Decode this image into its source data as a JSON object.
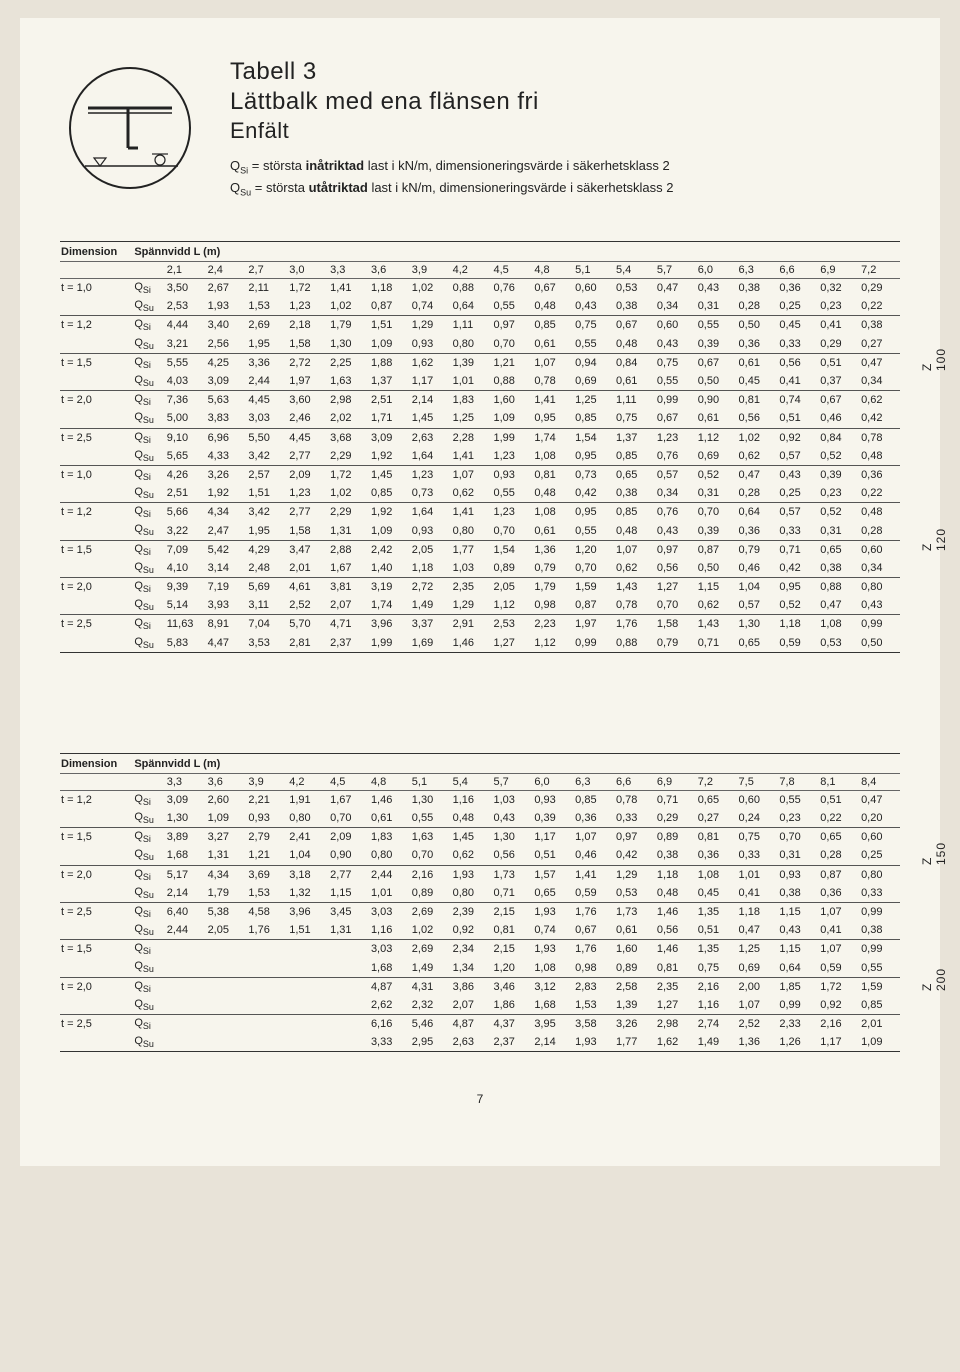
{
  "page_number": "7",
  "header": {
    "table_label": "Tabell 3",
    "title": "Lättbalk med ena flänsen fri",
    "subtitle": "Enfält",
    "def_qsi_pre": "Q",
    "def_qsi_sub": "Si",
    "def_qsi_text": " = största ",
    "def_qsi_bold": "inåtriktad",
    "def_qsi_after": " last i kN/m, dimensioneringsvärde i säkerhetsklass 2",
    "def_qsu_pre": "Q",
    "def_qsu_sub": "Su",
    "def_qsu_text": " = största ",
    "def_qsu_bold": "utåtriktad",
    "def_qsu_after": " last i kN/m, dimensioneringsvärde i säkerhetsklass 2"
  },
  "table1": {
    "dim_label": "Dimension",
    "span_label": "Spännvidd L (m)",
    "span_cols": [
      "2,1",
      "2,4",
      "2,7",
      "3,0",
      "3,3",
      "3,6",
      "3,9",
      "4,2",
      "4,5",
      "4,8",
      "5,1",
      "5,4",
      "5,7",
      "6,0",
      "6,3",
      "6,6",
      "6,9",
      "7,2"
    ],
    "groups": [
      {
        "z": "Z 100",
        "rows": [
          {
            "dim": "t = 1,0",
            "q": "QSi",
            "v": [
              "3,50",
              "2,67",
              "2,11",
              "1,72",
              "1,41",
              "1,18",
              "1,02",
              "0,88",
              "0,76",
              "0,67",
              "0,60",
              "0,53",
              "0,47",
              "0,43",
              "0,38",
              "0,36",
              "0,32",
              "0,29"
            ]
          },
          {
            "dim": "",
            "q": "QSu",
            "v": [
              "2,53",
              "1,93",
              "1,53",
              "1,23",
              "1,02",
              "0,87",
              "0,74",
              "0,64",
              "0,55",
              "0,48",
              "0,43",
              "0,38",
              "0,34",
              "0,31",
              "0,28",
              "0,25",
              "0,23",
              "0,22"
            ]
          },
          {
            "dim": "t = 1,2",
            "q": "QSi",
            "v": [
              "4,44",
              "3,40",
              "2,69",
              "2,18",
              "1,79",
              "1,51",
              "1,29",
              "1,11",
              "0,97",
              "0,85",
              "0,75",
              "0,67",
              "0,60",
              "0,55",
              "0,50",
              "0,45",
              "0,41",
              "0,38"
            ]
          },
          {
            "dim": "",
            "q": "QSu",
            "v": [
              "3,21",
              "2,56",
              "1,95",
              "1,58",
              "1,30",
              "1,09",
              "0,93",
              "0,80",
              "0,70",
              "0,61",
              "0,55",
              "0,48",
              "0,43",
              "0,39",
              "0,36",
              "0,33",
              "0,29",
              "0,27"
            ]
          },
          {
            "dim": "t = 1,5",
            "q": "QSi",
            "v": [
              "5,55",
              "4,25",
              "3,36",
              "2,72",
              "2,25",
              "1,88",
              "1,62",
              "1,39",
              "1,21",
              "1,07",
              "0,94",
              "0,84",
              "0,75",
              "0,67",
              "0,61",
              "0,56",
              "0,51",
              "0,47"
            ]
          },
          {
            "dim": "",
            "q": "QSu",
            "v": [
              "4,03",
              "3,09",
              "2,44",
              "1,97",
              "1,63",
              "1,37",
              "1,17",
              "1,01",
              "0,88",
              "0,78",
              "0,69",
              "0,61",
              "0,55",
              "0,50",
              "0,45",
              "0,41",
              "0,37",
              "0,34"
            ]
          },
          {
            "dim": "t = 2,0",
            "q": "QSi",
            "v": [
              "7,36",
              "5,63",
              "4,45",
              "3,60",
              "2,98",
              "2,51",
              "2,14",
              "1,83",
              "1,60",
              "1,41",
              "1,25",
              "1,11",
              "0,99",
              "0,90",
              "0,81",
              "0,74",
              "0,67",
              "0,62"
            ]
          },
          {
            "dim": "",
            "q": "QSu",
            "v": [
              "5,00",
              "3,83",
              "3,03",
              "2,46",
              "2,02",
              "1,71",
              "1,45",
              "1,25",
              "1,09",
              "0,95",
              "0,85",
              "0,75",
              "0,67",
              "0,61",
              "0,56",
              "0,51",
              "0,46",
              "0,42"
            ]
          },
          {
            "dim": "t = 2,5",
            "q": "QSi",
            "v": [
              "9,10",
              "6,96",
              "5,50",
              "4,45",
              "3,68",
              "3,09",
              "2,63",
              "2,28",
              "1,99",
              "1,74",
              "1,54",
              "1,37",
              "1,23",
              "1,12",
              "1,02",
              "0,92",
              "0,84",
              "0,78"
            ]
          },
          {
            "dim": "",
            "q": "QSu",
            "v": [
              "5,65",
              "4,33",
              "3,42",
              "2,77",
              "2,29",
              "1,92",
              "1,64",
              "1,41",
              "1,23",
              "1,08",
              "0,95",
              "0,85",
              "0,76",
              "0,69",
              "0,62",
              "0,57",
              "0,52",
              "0,48"
            ]
          }
        ]
      },
      {
        "z": "Z 120",
        "rows": [
          {
            "dim": "t = 1,0",
            "q": "QSi",
            "v": [
              "4,26",
              "3,26",
              "2,57",
              "2,09",
              "1,72",
              "1,45",
              "1,23",
              "1,07",
              "0,93",
              "0,81",
              "0,73",
              "0,65",
              "0,57",
              "0,52",
              "0,47",
              "0,43",
              "0,39",
              "0,36"
            ]
          },
          {
            "dim": "",
            "q": "QSu",
            "v": [
              "2,51",
              "1,92",
              "1,51",
              "1,23",
              "1,02",
              "0,85",
              "0,73",
              "0,62",
              "0,55",
              "0,48",
              "0,42",
              "0,38",
              "0,34",
              "0,31",
              "0,28",
              "0,25",
              "0,23",
              "0,22"
            ]
          },
          {
            "dim": "t = 1,2",
            "q": "QSi",
            "v": [
              "5,66",
              "4,34",
              "3,42",
              "2,77",
              "2,29",
              "1,92",
              "1,64",
              "1,41",
              "1,23",
              "1,08",
              "0,95",
              "0,85",
              "0,76",
              "0,70",
              "0,64",
              "0,57",
              "0,52",
              "0,48"
            ]
          },
          {
            "dim": "",
            "q": "QSu",
            "v": [
              "3,22",
              "2,47",
              "1,95",
              "1,58",
              "1,31",
              "1,09",
              "0,93",
              "0,80",
              "0,70",
              "0,61",
              "0,55",
              "0,48",
              "0,43",
              "0,39",
              "0,36",
              "0,33",
              "0,31",
              "0,28"
            ]
          },
          {
            "dim": "t = 1,5",
            "q": "QSi",
            "v": [
              "7,09",
              "5,42",
              "4,29",
              "3,47",
              "2,88",
              "2,42",
              "2,05",
              "1,77",
              "1,54",
              "1,36",
              "1,20",
              "1,07",
              "0,97",
              "0,87",
              "0,79",
              "0,71",
              "0,65",
              "0,60"
            ]
          },
          {
            "dim": "",
            "q": "QSu",
            "v": [
              "4,10",
              "3,14",
              "2,48",
              "2,01",
              "1,67",
              "1,40",
              "1,18",
              "1,03",
              "0,89",
              "0,79",
              "0,70",
              "0,62",
              "0,56",
              "0,50",
              "0,46",
              "0,42",
              "0,38",
              "0,34"
            ]
          },
          {
            "dim": "t = 2,0",
            "q": "QSi",
            "v": [
              "9,39",
              "7,19",
              "5,69",
              "4,61",
              "3,81",
              "3,19",
              "2,72",
              "2,35",
              "2,05",
              "1,79",
              "1,59",
              "1,43",
              "1,27",
              "1,15",
              "1,04",
              "0,95",
              "0,88",
              "0,80"
            ]
          },
          {
            "dim": "",
            "q": "QSu",
            "v": [
              "5,14",
              "3,93",
              "3,11",
              "2,52",
              "2,07",
              "1,74",
              "1,49",
              "1,29",
              "1,12",
              "0,98",
              "0,87",
              "0,78",
              "0,70",
              "0,62",
              "0,57",
              "0,52",
              "0,47",
              "0,43"
            ]
          },
          {
            "dim": "t = 2,5",
            "q": "QSi",
            "v": [
              "11,63",
              "8,91",
              "7,04",
              "5,70",
              "4,71",
              "3,96",
              "3,37",
              "2,91",
              "2,53",
              "2,23",
              "1,97",
              "1,76",
              "1,58",
              "1,43",
              "1,30",
              "1,18",
              "1,08",
              "0,99"
            ]
          },
          {
            "dim": "",
            "q": "QSu",
            "v": [
              "5,83",
              "4,47",
              "3,53",
              "2,81",
              "2,37",
              "1,99",
              "1,69",
              "1,46",
              "1,27",
              "1,12",
              "0,99",
              "0,88",
              "0,79",
              "0,71",
              "0,65",
              "0,59",
              "0,53",
              "0,50"
            ]
          }
        ]
      }
    ]
  },
  "table2": {
    "dim_label": "Dimension",
    "span_label": "Spännvidd L (m)",
    "span_cols": [
      "3,3",
      "3,6",
      "3,9",
      "4,2",
      "4,5",
      "4,8",
      "5,1",
      "5,4",
      "5,7",
      "6,0",
      "6,3",
      "6,6",
      "6,9",
      "7,2",
      "7,5",
      "7,8",
      "8,1",
      "8,4"
    ],
    "groups": [
      {
        "z": "Z 150",
        "rows": [
          {
            "dim": "t = 1,2",
            "q": "QSi",
            "v": [
              "3,09",
              "2,60",
              "2,21",
              "1,91",
              "1,67",
              "1,46",
              "1,30",
              "1,16",
              "1,03",
              "0,93",
              "0,85",
              "0,78",
              "0,71",
              "0,65",
              "0,60",
              "0,55",
              "0,51",
              "0,47"
            ]
          },
          {
            "dim": "",
            "q": "QSu",
            "v": [
              "1,30",
              "1,09",
              "0,93",
              "0,80",
              "0,70",
              "0,61",
              "0,55",
              "0,48",
              "0,43",
              "0,39",
              "0,36",
              "0,33",
              "0,29",
              "0,27",
              "0,24",
              "0,23",
              "0,22",
              "0,20"
            ]
          },
          {
            "dim": "t = 1,5",
            "q": "QSi",
            "v": [
              "3,89",
              "3,27",
              "2,79",
              "2,41",
              "2,09",
              "1,83",
              "1,63",
              "1,45",
              "1,30",
              "1,17",
              "1,07",
              "0,97",
              "0,89",
              "0,81",
              "0,75",
              "0,70",
              "0,65",
              "0,60"
            ]
          },
          {
            "dim": "",
            "q": "QSu",
            "v": [
              "1,68",
              "1,31",
              "1,21",
              "1,04",
              "0,90",
              "0,80",
              "0,70",
              "0,62",
              "0,56",
              "0,51",
              "0,46",
              "0,42",
              "0,38",
              "0,36",
              "0,33",
              "0,31",
              "0,28",
              "0,25"
            ]
          },
          {
            "dim": "t = 2,0",
            "q": "QSi",
            "v": [
              "5,17",
              "4,34",
              "3,69",
              "3,18",
              "2,77",
              "2,44",
              "2,16",
              "1,93",
              "1,73",
              "1,57",
              "1,41",
              "1,29",
              "1,18",
              "1,08",
              "1,01",
              "0,93",
              "0,87",
              "0,80"
            ]
          },
          {
            "dim": "",
            "q": "QSu",
            "v": [
              "2,14",
              "1,79",
              "1,53",
              "1,32",
              "1,15",
              "1,01",
              "0,89",
              "0,80",
              "0,71",
              "0,65",
              "0,59",
              "0,53",
              "0,48",
              "0,45",
              "0,41",
              "0,38",
              "0,36",
              "0,33"
            ]
          },
          {
            "dim": "t = 2,5",
            "q": "QSi",
            "v": [
              "6,40",
              "5,38",
              "4,58",
              "3,96",
              "3,45",
              "3,03",
              "2,69",
              "2,39",
              "2,15",
              "1,93",
              "1,76",
              "1,73",
              "1,46",
              "1,35",
              "1,18",
              "1,15",
              "1,07",
              "0,99"
            ]
          },
          {
            "dim": "",
            "q": "QSu",
            "v": [
              "2,44",
              "2,05",
              "1,76",
              "1,51",
              "1,31",
              "1,16",
              "1,02",
              "0,92",
              "0,81",
              "0,74",
              "0,67",
              "0,61",
              "0,56",
              "0,51",
              "0,47",
              "0,43",
              "0,41",
              "0,38"
            ]
          }
        ]
      },
      {
        "z": "Z 200",
        "rows": [
          {
            "dim": "t = 1,5",
            "q": "QSi",
            "v": [
              "",
              "",
              "",
              "",
              "",
              "3,03",
              "2,69",
              "2,34",
              "2,15",
              "1,93",
              "1,76",
              "1,60",
              "1,46",
              "1,35",
              "1,25",
              "1,15",
              "1,07",
              "0,99"
            ]
          },
          {
            "dim": "",
            "q": "QSu",
            "v": [
              "",
              "",
              "",
              "",
              "",
              "1,68",
              "1,49",
              "1,34",
              "1,20",
              "1,08",
              "0,98",
              "0,89",
              "0,81",
              "0,75",
              "0,69",
              "0,64",
              "0,59",
              "0,55"
            ]
          },
          {
            "dim": "t = 2,0",
            "q": "QSi",
            "v": [
              "",
              "",
              "",
              "",
              "",
              "4,87",
              "4,31",
              "3,86",
              "3,46",
              "3,12",
              "2,83",
              "2,58",
              "2,35",
              "2,16",
              "2,00",
              "1,85",
              "1,72",
              "1,59"
            ]
          },
          {
            "dim": "",
            "q": "QSu",
            "v": [
              "",
              "",
              "",
              "",
              "",
              "2,62",
              "2,32",
              "2,07",
              "1,86",
              "1,68",
              "1,53",
              "1,39",
              "1,27",
              "1,16",
              "1,07",
              "0,99",
              "0,92",
              "0,85"
            ]
          },
          {
            "dim": "t = 2,5",
            "q": "QSi",
            "v": [
              "",
              "",
              "",
              "",
              "",
              "6,16",
              "5,46",
              "4,87",
              "4,37",
              "3,95",
              "3,58",
              "3,26",
              "2,98",
              "2,74",
              "2,52",
              "2,33",
              "2,16",
              "2,01"
            ]
          },
          {
            "dim": "",
            "q": "QSu",
            "v": [
              "",
              "",
              "",
              "",
              "",
              "3,33",
              "2,95",
              "2,63",
              "2,37",
              "2,14",
              "1,93",
              "1,77",
              "1,62",
              "1,49",
              "1,36",
              "1,26",
              "1,17",
              "1,09"
            ]
          }
        ]
      }
    ]
  },
  "colors": {
    "page_bg": "#f7f5ed",
    "outer_bg": "#e8e3d8",
    "text": "#222222",
    "rule": "#333333"
  }
}
